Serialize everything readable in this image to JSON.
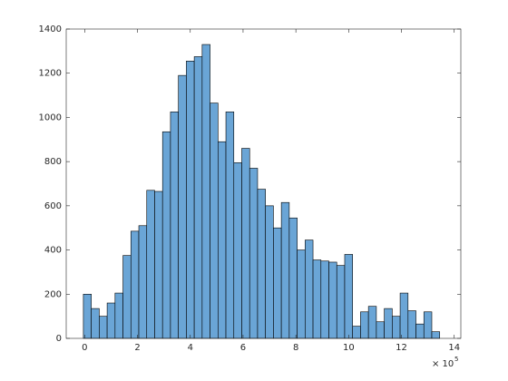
{
  "chart_data": {
    "type": "histogram",
    "bins": [
      -0.05,
      0.25,
      0.55,
      0.85,
      1.15,
      1.45,
      1.75,
      2.05,
      2.35,
      2.65,
      2.95,
      3.25,
      3.55,
      3.85,
      4.15,
      4.45,
      4.75,
      5.05,
      5.35,
      5.65,
      5.95,
      6.25,
      6.55,
      6.85,
      7.15,
      7.45,
      7.75,
      8.05,
      8.35,
      8.65,
      8.95,
      9.25,
      9.55,
      9.85,
      10.15,
      10.45,
      10.75,
      11.05,
      11.35,
      11.65,
      11.95,
      12.25,
      12.55,
      12.85,
      13.15,
      13.45
    ],
    "values": [
      200,
      135,
      100,
      160,
      205,
      375,
      485,
      510,
      670,
      665,
      935,
      1025,
      1190,
      1255,
      1275,
      1330,
      1065,
      890,
      1025,
      795,
      860,
      770,
      675,
      600,
      500,
      615,
      545,
      400,
      445,
      355,
      350,
      345,
      330,
      380,
      55,
      120,
      145,
      75,
      135,
      100,
      205,
      125,
      65,
      120,
      30
    ],
    "color": "#6aa5d6",
    "xlim": [
      -0.7,
      14.25
    ],
    "xticks": [
      0,
      2,
      4,
      6,
      8,
      10,
      12,
      14
    ],
    "ylim": [
      0,
      1400
    ],
    "yticks": [
      0,
      200,
      400,
      600,
      800,
      1000,
      1200,
      1400
    ],
    "x_exponent_base": "× 10",
    "x_exponent": "5"
  }
}
